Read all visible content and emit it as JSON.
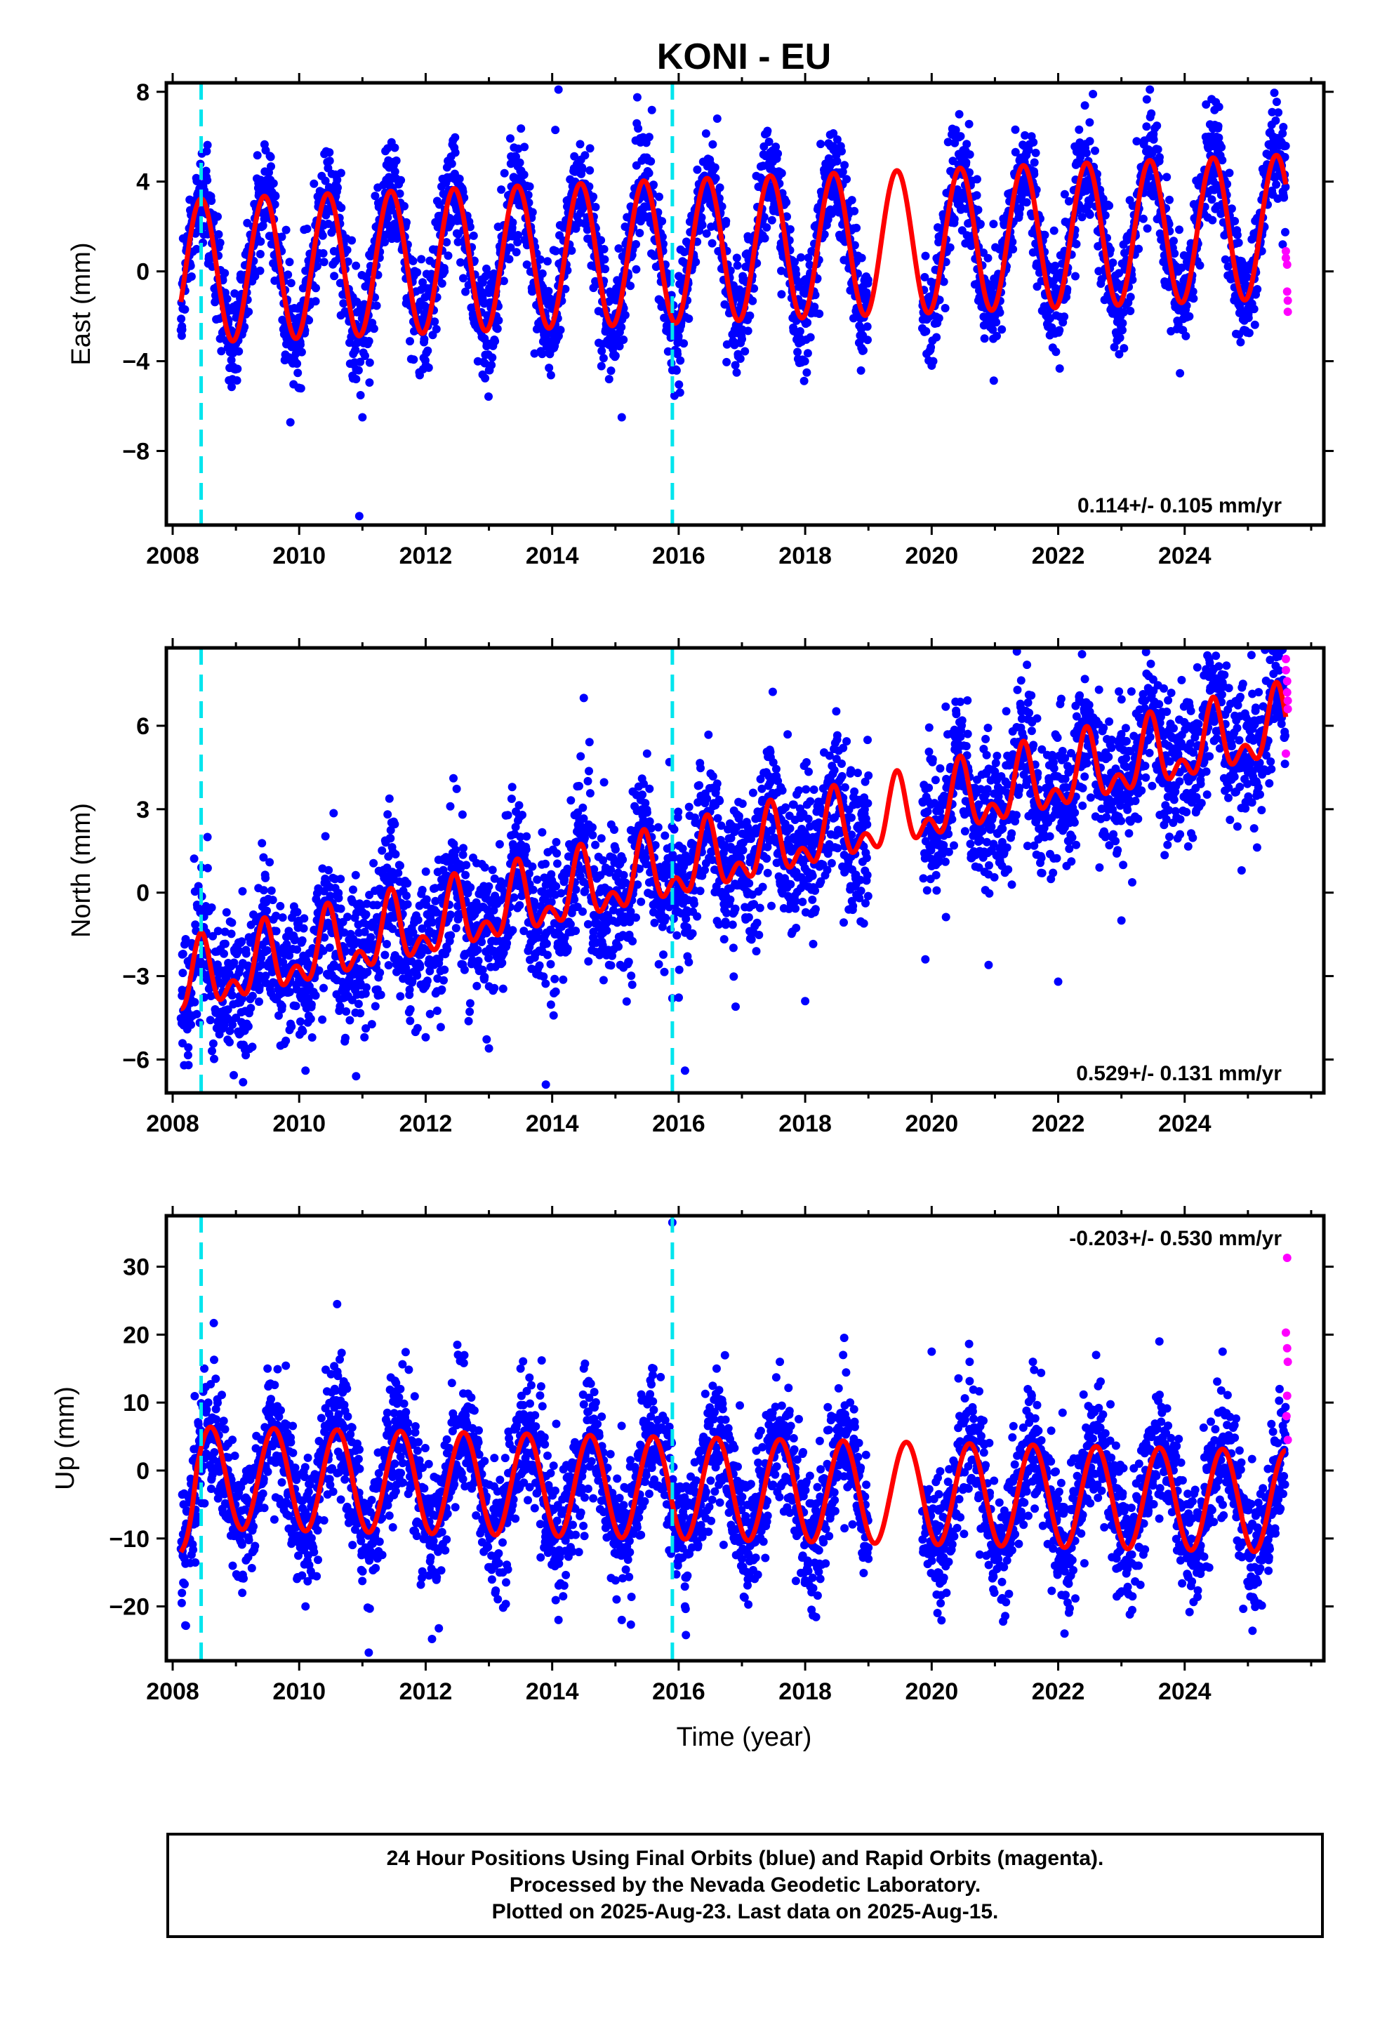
{
  "title": "KONI - EU",
  "x_axis_label": "Time (year)",
  "legend_lines": [
    "24 Hour Positions Using Final Orbits (blue) and Rapid Orbits (magenta).",
    "Processed by the Nevada Geodetic Laboratory.",
    "Plotted on 2025-Aug-23. Last data on 2025-Aug-15."
  ],
  "colors": {
    "final_orbits": "#0000ff",
    "rapid_orbits": "#ff00ff",
    "model_fit": "#ff0000",
    "events": "#00e5ee",
    "frame": "#000000"
  },
  "chart_data": [
    {
      "type": "scatter",
      "title": "KONI - EU",
      "ylabel": "East (mm)",
      "xlabel": "",
      "xlim": [
        2007.9,
        2026.2
      ],
      "ylim": [
        -11.3,
        8.4
      ],
      "x_ticks": [
        2008,
        2010,
        2012,
        2014,
        2016,
        2018,
        2020,
        2022,
        2024
      ],
      "y_ticks": [
        8,
        4,
        0,
        -4,
        -8
      ],
      "y_tick_labels": [
        "8",
        "4",
        "0",
        "−4",
        "−8"
      ],
      "rate_text": "0.114+/- 0.105 mm/yr",
      "rate_position": "bottom-right",
      "event_lines_x": [
        2008.45,
        2015.9
      ],
      "series": [
        {
          "kind": "final_orbits",
          "marker": "point",
          "points": [
            [
              2008.15,
              -2.6
            ],
            [
              2008.4,
              2.1
            ],
            [
              2008.5,
              3.6
            ],
            [
              2008.75,
              -3.0
            ],
            [
              2008.9,
              -4.3
            ],
            [
              2009.2,
              -1.8
            ],
            [
              2009.45,
              2.6
            ],
            [
              2009.6,
              1.2
            ],
            [
              2009.9,
              -4.1
            ],
            [
              2010.0,
              -5.2
            ],
            [
              2010.4,
              2.8
            ],
            [
              2010.55,
              0.9
            ],
            [
              2010.9,
              -4.8
            ],
            [
              2010.95,
              -10.9
            ],
            [
              2011.0,
              -6.5
            ],
            [
              2011.4,
              2.4
            ],
            [
              2011.7,
              -1.2
            ],
            [
              2011.9,
              -4.5
            ],
            [
              2012.4,
              2.3
            ],
            [
              2012.55,
              0.4
            ],
            [
              2012.9,
              -4.6
            ],
            [
              2013.4,
              3.3
            ],
            [
              2013.6,
              0.3
            ],
            [
              2013.95,
              -4.3
            ],
            [
              2014.1,
              8.1
            ],
            [
              2014.05,
              6.3
            ],
            [
              2014.45,
              2.6
            ],
            [
              2014.9,
              -4.8
            ],
            [
              2015.1,
              -6.5
            ],
            [
              2015.45,
              2.4
            ],
            [
              2015.9,
              -4.4
            ],
            [
              2016.45,
              4.9
            ],
            [
              2016.9,
              -2.6
            ],
            [
              2017.45,
              4.8
            ],
            [
              2017.9,
              -3.2
            ],
            [
              2018.5,
              5.4
            ],
            [
              2018.9,
              -3.0
            ],
            [
              2019.9,
              -1.6
            ],
            [
              2020.0,
              -4.2
            ],
            [
              2020.5,
              5.4
            ],
            [
              2020.9,
              -1.7
            ],
            [
              2021.5,
              5.3
            ],
            [
              2021.9,
              -2.5
            ],
            [
              2022.5,
              5.8
            ],
            [
              2022.55,
              7.9
            ],
            [
              2022.9,
              -1.8
            ],
            [
              2023.5,
              6.0
            ],
            [
              2023.45,
              8.1
            ],
            [
              2023.9,
              -1.7
            ],
            [
              2024.5,
              5.8
            ],
            [
              2024.9,
              -1.8
            ],
            [
              2025.3,
              4.7
            ],
            [
              2025.55,
              1.2
            ]
          ]
        },
        {
          "kind": "rapid_orbits",
          "marker": "point",
          "points": [
            [
              2025.6,
              0.9
            ],
            [
              2025.6,
              0.6
            ],
            [
              2025.62,
              0.3
            ],
            [
              2025.62,
              -0.9
            ],
            [
              2025.63,
              -1.3
            ],
            [
              2025.63,
              -1.8
            ]
          ]
        },
        {
          "kind": "model_fit",
          "marker": "line",
          "model": {
            "t0": 2008.13,
            "t_end": 2025.6,
            "offset": 0.0,
            "rate": 0.114,
            "annual_amplitude": 3.2,
            "annual_peak_year_fraction": 0.45,
            "semiannual_amplitude": 0.0,
            "gaps": []
          }
        }
      ]
    },
    {
      "type": "scatter",
      "title": "",
      "ylabel": "North (mm)",
      "xlabel": "",
      "xlim": [
        2007.9,
        2026.2
      ],
      "ylim": [
        -7.2,
        8.8
      ],
      "x_ticks": [
        2008,
        2010,
        2012,
        2014,
        2016,
        2018,
        2020,
        2022,
        2024
      ],
      "y_ticks": [
        6,
        3,
        0,
        -3,
        -6
      ],
      "y_tick_labels": [
        "6",
        "3",
        "0",
        "−3",
        "−6"
      ],
      "rate_text": "0.529+/- 0.131 mm/yr",
      "rate_position": "bottom-right",
      "event_lines_x": [
        2008.45,
        2015.9
      ],
      "series": [
        {
          "kind": "final_orbits",
          "marker": "point",
          "points": [
            [
              2008.15,
              -3.5
            ],
            [
              2008.25,
              -6.2
            ],
            [
              2008.5,
              -0.6
            ],
            [
              2008.55,
              2.0
            ],
            [
              2009.0,
              -4.5
            ],
            [
              2009.5,
              -1.4
            ],
            [
              2010.1,
              -6.4
            ],
            [
              2010.5,
              -0.6
            ],
            [
              2010.9,
              -6.6
            ],
            [
              2011.5,
              -0.9
            ],
            [
              2012.0,
              -5.2
            ],
            [
              2012.5,
              0.9
            ],
            [
              2013.0,
              -5.6
            ],
            [
              2013.5,
              1.5
            ],
            [
              2013.9,
              -6.9
            ],
            [
              2014.5,
              7.0
            ],
            [
              2014.45,
              4.9
            ],
            [
              2014.9,
              -2.6
            ],
            [
              2015.5,
              5.0
            ],
            [
              2015.9,
              -3.8
            ],
            [
              2016.1,
              -6.4
            ],
            [
              2016.5,
              1.9
            ],
            [
              2016.9,
              -4.1
            ],
            [
              2017.5,
              2.6
            ],
            [
              2018.0,
              -3.9
            ],
            [
              2018.6,
              5.2
            ],
            [
              2019.9,
              -2.4
            ],
            [
              2020.4,
              4.8
            ],
            [
              2020.9,
              -2.6
            ],
            [
              2021.5,
              5.0
            ],
            [
              2022.0,
              -3.2
            ],
            [
              2022.5,
              6.5
            ],
            [
              2023.0,
              -1.0
            ],
            [
              2023.5,
              6.7
            ],
            [
              2024.2,
              8.1
            ],
            [
              2024.5,
              7.7
            ],
            [
              2024.9,
              0.8
            ],
            [
              2025.5,
              6.4
            ]
          ]
        },
        {
          "kind": "rapid_orbits",
          "marker": "point",
          "points": [
            [
              2025.6,
              8.4
            ],
            [
              2025.6,
              8.0
            ],
            [
              2025.62,
              7.6
            ],
            [
              2025.62,
              7.2
            ],
            [
              2025.63,
              6.9
            ],
            [
              2025.63,
              6.6
            ],
            [
              2025.6,
              5.0
            ]
          ]
        },
        {
          "kind": "model_fit",
          "marker": "line",
          "model": {
            "t0": 2008.13,
            "t_end": 2025.6,
            "offset": -3.3,
            "rate": 0.529,
            "annual_amplitude": 1.0,
            "annual_peak_year_fraction": 0.45,
            "semiannual_amplitude": 0.7,
            "gaps": []
          }
        }
      ]
    },
    {
      "type": "scatter",
      "title": "",
      "ylabel": "Up (mm)",
      "xlabel": "Time (year)",
      "xlim": [
        2007.9,
        2026.2
      ],
      "ylim": [
        -28.0,
        37.5
      ],
      "x_ticks": [
        2008,
        2010,
        2012,
        2014,
        2016,
        2018,
        2020,
        2022,
        2024
      ],
      "y_ticks": [
        30,
        20,
        10,
        0,
        -10,
        -20
      ],
      "y_tick_labels": [
        "30",
        "20",
        "10",
        "0",
        "−10",
        "−20"
      ],
      "rate_text": "-0.203+/- 0.530 mm/yr",
      "rate_position": "top-right",
      "event_lines_x": [
        2008.45,
        2015.9
      ],
      "series": [
        {
          "kind": "final_orbits",
          "marker": "point",
          "points": [
            [
              2008.15,
              -11.5
            ],
            [
              2008.2,
              -22.8
            ],
            [
              2008.5,
              15.0
            ],
            [
              2008.65,
              21.7
            ],
            [
              2009.1,
              -18.0
            ],
            [
              2009.5,
              15.0
            ],
            [
              2010.1,
              -20.0
            ],
            [
              2010.6,
              24.5
            ],
            [
              2011.1,
              -26.8
            ],
            [
              2011.6,
              12.0
            ],
            [
              2012.1,
              -24.8
            ],
            [
              2012.5,
              18.5
            ],
            [
              2013.1,
              -18.0
            ],
            [
              2013.5,
              15.0
            ],
            [
              2014.1,
              -22.0
            ],
            [
              2014.5,
              15.0
            ],
            [
              2015.1,
              -22.0
            ],
            [
              2015.6,
              15.0
            ],
            [
              2015.9,
              36.5
            ],
            [
              2016.1,
              -20.0
            ],
            [
              2016.6,
              15.0
            ],
            [
              2017.1,
              -16.0
            ],
            [
              2017.6,
              16.0
            ],
            [
              2018.1,
              -20.5
            ],
            [
              2018.6,
              17.0
            ],
            [
              2019.0,
              -13.0
            ],
            [
              2020.0,
              17.5
            ],
            [
              2020.1,
              -15.0
            ],
            [
              2020.6,
              16.0
            ],
            [
              2021.1,
              -19.0
            ],
            [
              2021.6,
              16.0
            ],
            [
              2022.1,
              -24.0
            ],
            [
              2022.6,
              17.0
            ],
            [
              2023.1,
              -18.0
            ],
            [
              2023.6,
              19.0
            ],
            [
              2024.1,
              -17.0
            ],
            [
              2024.6,
              17.5
            ],
            [
              2025.1,
              -19.0
            ],
            [
              2025.5,
              12.0
            ]
          ]
        },
        {
          "kind": "rapid_orbits",
          "marker": "point",
          "points": [
            [
              2025.62,
              31.3
            ],
            [
              2025.6,
              20.3
            ],
            [
              2025.62,
              18.0
            ],
            [
              2025.63,
              16.0
            ],
            [
              2025.62,
              11.0
            ],
            [
              2025.61,
              8.0
            ],
            [
              2025.63,
              4.5
            ]
          ]
        },
        {
          "kind": "model_fit",
          "marker": "line",
          "model": {
            "t0": 2008.13,
            "t_end": 2025.6,
            "offset": -1.0,
            "rate": -0.203,
            "annual_amplitude": 7.5,
            "annual_peak_year_fraction": 0.6,
            "semiannual_amplitude": 0.0,
            "start_value": -12.0,
            "gaps": []
          }
        }
      ]
    }
  ]
}
